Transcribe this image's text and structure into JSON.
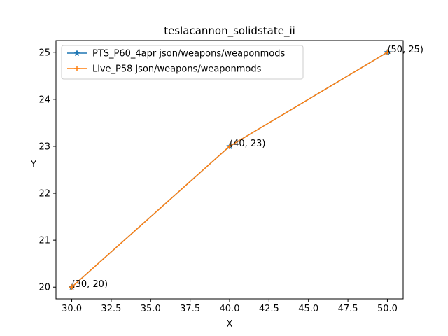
{
  "chart_data": {
    "type": "line",
    "title": "teslacannon_solidstate_ii",
    "xlabel": "X",
    "ylabel": "Y",
    "xlim": [
      29.0,
      51.0
    ],
    "ylim": [
      19.75,
      25.25
    ],
    "xticks": [
      30.0,
      32.5,
      35.0,
      37.5,
      40.0,
      42.5,
      45.0,
      47.5,
      50.0
    ],
    "xtick_labels": [
      "30.0",
      "32.5",
      "35.0",
      "37.5",
      "40.0",
      "42.5",
      "45.0",
      "47.5",
      "50.0"
    ],
    "yticks": [
      20,
      21,
      22,
      23,
      24,
      25
    ],
    "ytick_labels": [
      "20",
      "21",
      "22",
      "23",
      "24",
      "25"
    ],
    "grid": false,
    "legend_position": "upper-left",
    "x": [
      30,
      40,
      50
    ],
    "series": [
      {
        "name": "PTS_P60_4apr json/weapons/weaponmods",
        "values": [
          20,
          23,
          25
        ],
        "color": "#1f77b4",
        "marker": "star"
      },
      {
        "name": "Live_P58 json/weapons/weaponmods",
        "values": [
          20,
          23,
          25
        ],
        "color": "#ff7f0e",
        "marker": "plus"
      }
    ],
    "annotations": [
      "(30, 20)",
      "(40, 23)",
      "(50, 25)"
    ]
  }
}
